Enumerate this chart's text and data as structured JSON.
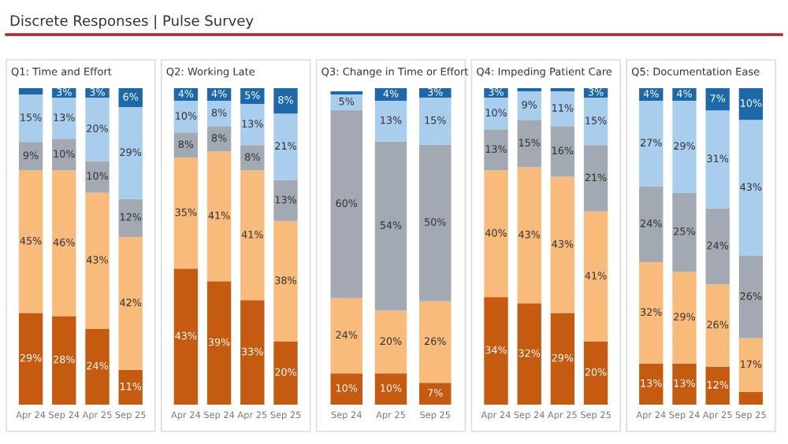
{
  "chart_data": [
    {
      "type": "bar",
      "stacked": true,
      "annotations": [
        "Discrete Responses | Pulse Survey"
      ],
      "title": "Q1: Time and Effort",
      "categories": [
        "Apr 24",
        "Sep 24",
        "Apr 25",
        "Sep 25"
      ],
      "grid": false,
      "legend": false,
      "series": [
        {
          "color": "#c55a11",
          "values": [
            29,
            28,
            24,
            11
          ],
          "value_labels": [
            "29%",
            "28%",
            "24%",
            "11%"
          ]
        },
        {
          "color": "#f8bb7c",
          "values": [
            45,
            46,
            43,
            42
          ],
          "value_labels": [
            "45%",
            "46%",
            "43%",
            "42%"
          ]
        },
        {
          "color": "#a2a9b2",
          "values": [
            9,
            10,
            10,
            12
          ],
          "value_labels": [
            "9%",
            "10%",
            "10%",
            "12%"
          ]
        },
        {
          "color": "#a9cdec",
          "values": [
            15,
            13,
            20,
            29
          ],
          "value_labels": [
            "15%",
            "13%",
            "20%",
            "29%"
          ]
        },
        {
          "color": "#1d68a8",
          "values": [
            2,
            3,
            3,
            6
          ],
          "value_labels": [
            null,
            "3%",
            "3%",
            "6%"
          ]
        }
      ]
    },
    {
      "type": "bar",
      "stacked": true,
      "title": "Q2: Working Late",
      "categories": [
        "Apr 24",
        "Sep 24",
        "Apr 25",
        "Sep 25"
      ],
      "grid": false,
      "legend": false,
      "series": [
        {
          "color": "#c55a11",
          "values": [
            43,
            39,
            33,
            20
          ],
          "value_labels": [
            "43%",
            "39%",
            "33%",
            "20%"
          ]
        },
        {
          "color": "#f8bb7c",
          "values": [
            35,
            41,
            41,
            38
          ],
          "value_labels": [
            "35%",
            "41%",
            "41%",
            "38%"
          ]
        },
        {
          "color": "#a2a9b2",
          "values": [
            8,
            8,
            8,
            13
          ],
          "value_labels": [
            "8%",
            "8%",
            "8%",
            "13%"
          ]
        },
        {
          "color": "#a9cdec",
          "values": [
            10,
            8,
            13,
            21
          ],
          "value_labels": [
            "10%",
            "8%",
            "13%",
            "21%"
          ]
        },
        {
          "color": "#1d68a8",
          "values": [
            4,
            4,
            5,
            8
          ],
          "value_labels": [
            "4%",
            "4%",
            "5%",
            "8%"
          ]
        }
      ]
    },
    {
      "type": "bar",
      "stacked": true,
      "title": "Q3: Change in Time or Effort",
      "categories": [
        "Sep 24",
        "Apr 25",
        "Sep 25"
      ],
      "grid": false,
      "legend": false,
      "series": [
        {
          "color": "#c55a11",
          "values": [
            10,
            10,
            7
          ],
          "value_labels": [
            "10%",
            "10%",
            "7%"
          ]
        },
        {
          "color": "#f8bb7c",
          "values": [
            24,
            20,
            26
          ],
          "value_labels": [
            "24%",
            "20%",
            "26%"
          ]
        },
        {
          "color": "#a2a9b2",
          "values": [
            60,
            54,
            50
          ],
          "value_labels": [
            "60%",
            "54%",
            "50%"
          ]
        },
        {
          "color": "#a9cdec",
          "values": [
            5,
            13,
            15
          ],
          "value_labels": [
            "5%",
            "13%",
            "15%"
          ]
        },
        {
          "color": "#1d68a8",
          "values": [
            1,
            4,
            3
          ],
          "value_labels": [
            null,
            "4%",
            "3%"
          ]
        }
      ]
    },
    {
      "type": "bar",
      "stacked": true,
      "title": "Q4: Impeding Patient Care",
      "categories": [
        "Apr 24",
        "Sep 24",
        "Apr 25",
        "Sep 25"
      ],
      "grid": false,
      "legend": false,
      "series": [
        {
          "color": "#c55a11",
          "values": [
            34,
            32,
            29,
            20
          ],
          "value_labels": [
            "34%",
            "32%",
            "29%",
            "20%"
          ]
        },
        {
          "color": "#f8bb7c",
          "values": [
            40,
            43,
            43,
            41
          ],
          "value_labels": [
            "40%",
            "43%",
            "43%",
            "41%"
          ]
        },
        {
          "color": "#a2a9b2",
          "values": [
            13,
            15,
            16,
            21
          ],
          "value_labels": [
            "13%",
            "15%",
            "16%",
            "21%"
          ]
        },
        {
          "color": "#a9cdec",
          "values": [
            10,
            9,
            11,
            15
          ],
          "value_labels": [
            "10%",
            "9%",
            "11%",
            "15%"
          ]
        },
        {
          "color": "#1d68a8",
          "values": [
            3,
            1,
            1,
            3
          ],
          "value_labels": [
            "3%",
            null,
            null,
            "3%"
          ]
        }
      ]
    },
    {
      "type": "bar",
      "stacked": true,
      "title": "Q5: Documentation Ease",
      "categories": [
        "Apr 24",
        "Sep 24",
        "Apr 25",
        "Sep 25"
      ],
      "grid": false,
      "legend": false,
      "series": [
        {
          "color": "#c55a11",
          "values": [
            13,
            13,
            12,
            4
          ],
          "value_labels": [
            "13%",
            "13%",
            "12%",
            null
          ]
        },
        {
          "color": "#f8bb7c",
          "values": [
            32,
            29,
            26,
            17
          ],
          "value_labels": [
            "32%",
            "29%",
            "26%",
            "17%"
          ]
        },
        {
          "color": "#a2a9b2",
          "values": [
            24,
            25,
            24,
            26
          ],
          "value_labels": [
            "24%",
            "25%",
            "24%",
            "26%"
          ]
        },
        {
          "color": "#a9cdec",
          "values": [
            27,
            29,
            31,
            43
          ],
          "value_labels": [
            "27%",
            "29%",
            "31%",
            "43%"
          ]
        },
        {
          "color": "#1d68a8",
          "values": [
            4,
            4,
            7,
            10
          ],
          "value_labels": [
            "4%",
            "4%",
            "7%",
            "10%"
          ]
        }
      ]
    }
  ]
}
